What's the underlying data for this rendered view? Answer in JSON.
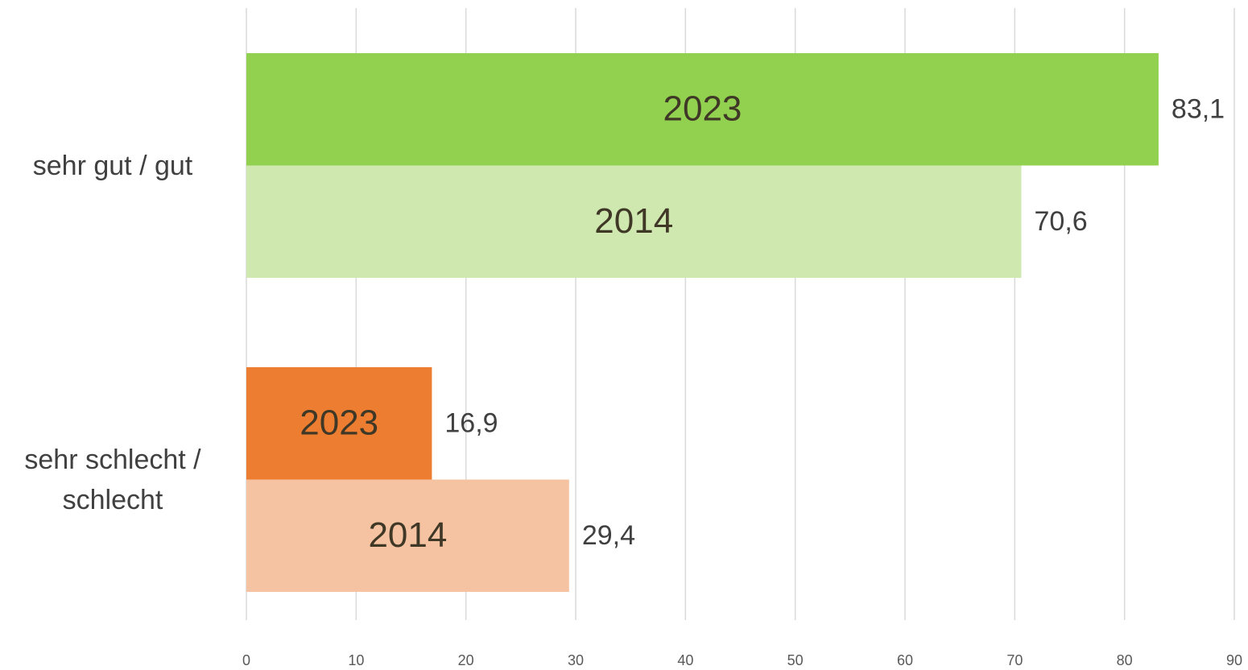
{
  "chart_data": {
    "type": "bar",
    "orientation": "horizontal",
    "categories": [
      "sehr gut / gut",
      "sehr schlecht / schlecht"
    ],
    "series": [
      {
        "name": "2023",
        "colors": [
          "#92d050",
          "#ed7d31"
        ],
        "values": [
          83.1,
          16.9
        ],
        "value_labels": [
          "83,1",
          "16,9"
        ]
      },
      {
        "name": "2014",
        "colors": [
          "#cfe8b0",
          "#f5c3a2"
        ],
        "values": [
          70.6,
          29.4
        ],
        "value_labels": [
          "70,6",
          "29,4"
        ]
      }
    ],
    "xlim": [
      0,
      90
    ],
    "xticks": [
      0,
      10,
      20,
      30,
      40,
      50,
      60,
      70,
      80,
      90
    ],
    "grid": true
  }
}
